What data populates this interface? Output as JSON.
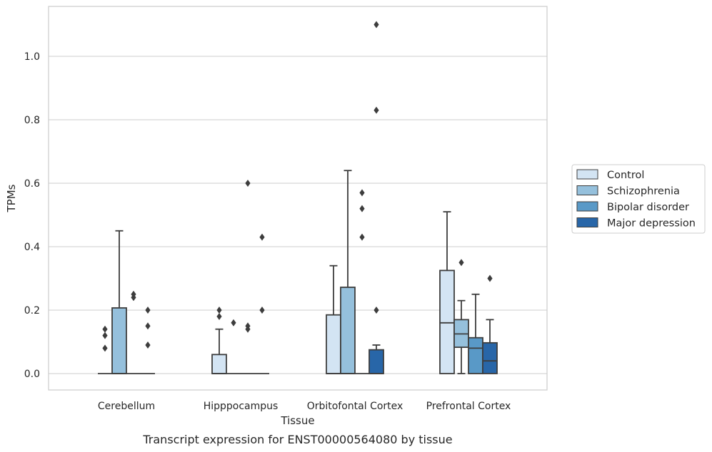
{
  "chart_data": {
    "type": "box",
    "caption": "Transcript expression for ENST00000564080 by tissue",
    "xlabel": "Tissue",
    "ylabel": "TPMs",
    "ylim": [
      -0.055,
      1.16
    ],
    "yticks": [
      0.0,
      0.2,
      0.4,
      0.6,
      0.8,
      1.0
    ],
    "ytick_labels": [
      "0.0",
      "0.2",
      "0.4",
      "0.6",
      "0.8",
      "1.0"
    ],
    "grid": "horizontal",
    "legend_position": "right",
    "categories": [
      "Cerebellum",
      "Hipppocampus",
      "Orbitofontal Cortex",
      "Prefrontal Cortex"
    ],
    "colors": [
      "#d3e4f3",
      "#95c0dc",
      "#5999c7",
      "#2866a8"
    ],
    "series": [
      {
        "name": "Control",
        "boxes": [
          {
            "q1": 0,
            "median": 0,
            "q3": 0,
            "whisker_low": 0,
            "whisker_high": 0,
            "outliers": [
              0.08,
              0.12,
              0.14
            ]
          },
          {
            "q1": 0,
            "median": 0,
            "q3": 0.06,
            "whisker_low": 0,
            "whisker_high": 0.14,
            "outliers": [
              0.18,
              0.2
            ]
          },
          {
            "q1": 0,
            "median": 0,
            "q3": 0.185,
            "whisker_low": 0,
            "whisker_high": 0.34,
            "outliers": []
          },
          {
            "q1": 0,
            "median": 0.16,
            "q3": 0.325,
            "whisker_low": 0,
            "whisker_high": 0.51,
            "outliers": []
          }
        ]
      },
      {
        "name": "Schizophrenia",
        "boxes": [
          {
            "q1": 0,
            "median": 0,
            "q3": 0.207,
            "whisker_low": 0,
            "whisker_high": 0.45,
            "outliers": []
          },
          {
            "q1": 0,
            "median": 0,
            "q3": 0,
            "whisker_low": 0,
            "whisker_high": 0,
            "outliers": [
              0.16
            ]
          },
          {
            "q1": 0,
            "median": 0,
            "q3": 0.272,
            "whisker_low": 0,
            "whisker_high": 0.64,
            "outliers": []
          },
          {
            "q1": 0.083,
            "median": 0.125,
            "q3": 0.17,
            "whisker_low": 0,
            "whisker_high": 0.23,
            "outliers": [
              0.35
            ]
          }
        ]
      },
      {
        "name": "Bipolar disorder",
        "boxes": [
          {
            "q1": 0,
            "median": 0,
            "q3": 0,
            "whisker_low": 0,
            "whisker_high": 0,
            "outliers": [
              0.24,
              0.25
            ]
          },
          {
            "q1": 0,
            "median": 0,
            "q3": 0,
            "whisker_low": 0,
            "whisker_high": 0,
            "outliers": [
              0.14,
              0.15,
              0.6
            ]
          },
          {
            "q1": 0,
            "median": 0,
            "q3": 0,
            "whisker_low": 0,
            "whisker_high": 0,
            "outliers": [
              0.43,
              0.52,
              0.57
            ]
          },
          {
            "q1": 0,
            "median": 0.08,
            "q3": 0.113,
            "whisker_low": 0,
            "whisker_high": 0.25,
            "outliers": []
          }
        ]
      },
      {
        "name": "Major depression",
        "boxes": [
          {
            "q1": 0,
            "median": 0,
            "q3": 0,
            "whisker_low": 0,
            "whisker_high": 0,
            "outliers": [
              0.09,
              0.15,
              0.2
            ]
          },
          {
            "q1": 0,
            "median": 0,
            "q3": 0,
            "whisker_low": 0,
            "whisker_high": 0,
            "outliers": [
              0.2,
              0.43
            ]
          },
          {
            "q1": 0,
            "median": 0,
            "q3": 0.075,
            "whisker_low": 0,
            "whisker_high": 0.09,
            "outliers": [
              0.2,
              0.83,
              1.1
            ]
          },
          {
            "q1": 0,
            "median": 0.04,
            "q3": 0.097,
            "whisker_low": 0,
            "whisker_high": 0.17,
            "outliers": [
              0.3
            ]
          }
        ]
      }
    ]
  }
}
